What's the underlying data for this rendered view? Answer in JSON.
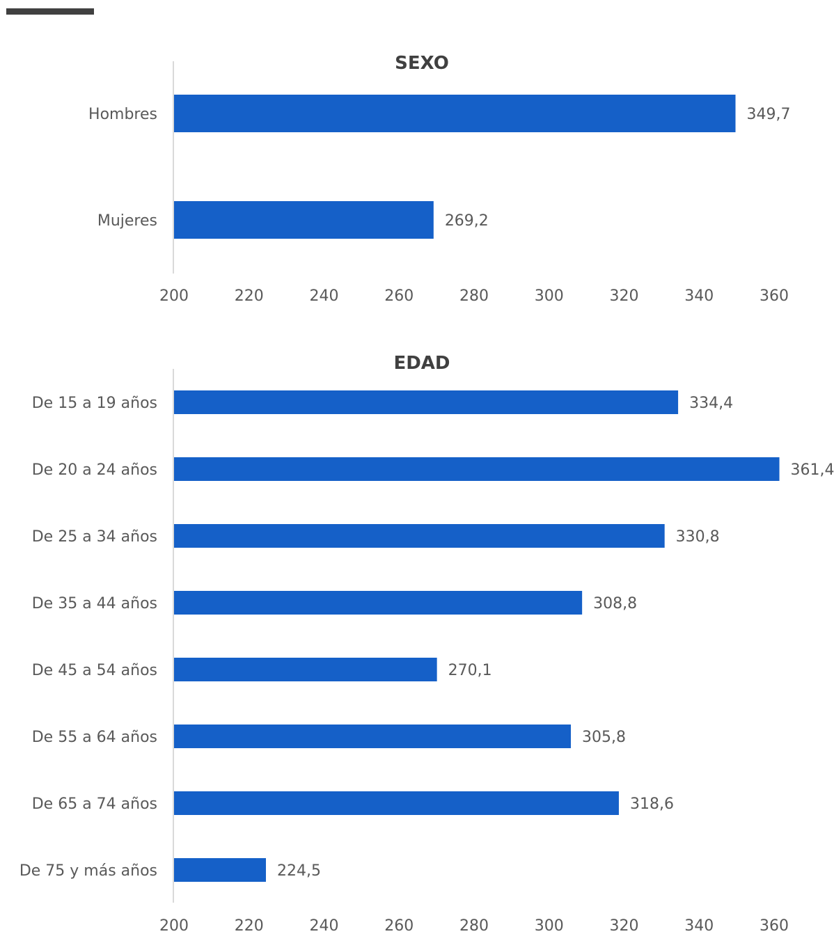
{
  "accent_color": "#404040",
  "bar_color": "#1560C8",
  "chart_data": [
    {
      "type": "bar",
      "orientation": "horizontal",
      "title": "SEXO",
      "categories": [
        "Hombres",
        "Mujeres"
      ],
      "values": [
        349.7,
        269.2
      ],
      "value_labels": [
        "349,7",
        "269,2"
      ],
      "xlim": [
        200,
        360
      ],
      "xticks": [
        "200",
        "220",
        "240",
        "260",
        "280",
        "300",
        "320",
        "340",
        "360"
      ],
      "legend": "none",
      "grid": false
    },
    {
      "type": "bar",
      "orientation": "horizontal",
      "title": "EDAD",
      "categories": [
        "De 15 a 19 años",
        "De 20 a 24 años",
        "De 25 a 34 años",
        "De 35 a 44 años",
        "De 45 a 54 años",
        "De 55 a 64 años",
        "De 65 a 74 años",
        "De 75 y más años"
      ],
      "values": [
        334.4,
        361.4,
        330.8,
        308.8,
        270.1,
        305.8,
        318.6,
        224.5
      ],
      "value_labels": [
        "334,4",
        "361,4",
        "330,8",
        "308,8",
        "270,1",
        "305,8",
        "318,6",
        "224,5"
      ],
      "xlim": [
        200,
        360
      ],
      "xticks": [
        "200",
        "220",
        "240",
        "260",
        "280",
        "300",
        "320",
        "340",
        "360"
      ],
      "legend": "none",
      "grid": false
    }
  ]
}
